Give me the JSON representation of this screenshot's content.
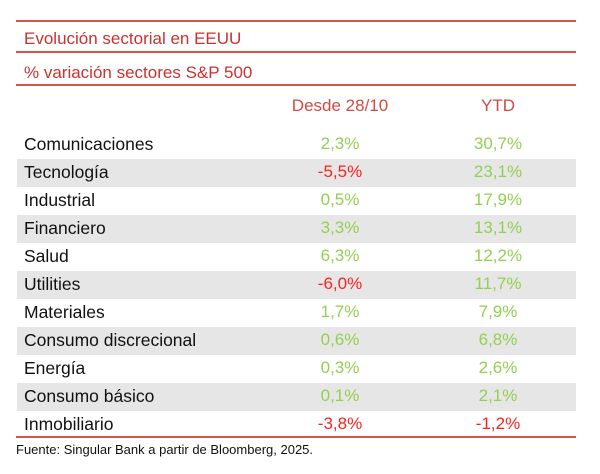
{
  "header": {
    "title": "Evolución sectorial en EEUU",
    "subtitle": "% variación sectores S&P 500"
  },
  "table": {
    "columns": [
      "Desde 28/10",
      "YTD"
    ],
    "rows": [
      {
        "sector": "Comunicaciones",
        "desde": "2,3%",
        "ytd": "30,7%",
        "desde_sign": "pos",
        "ytd_sign": "pos"
      },
      {
        "sector": "Tecnología",
        "desde": "-5,5%",
        "ytd": "23,1%",
        "desde_sign": "neg",
        "ytd_sign": "pos"
      },
      {
        "sector": "Industrial",
        "desde": "0,5%",
        "ytd": "17,9%",
        "desde_sign": "pos",
        "ytd_sign": "pos"
      },
      {
        "sector": "Financiero",
        "desde": "3,3%",
        "ytd": "13,1%",
        "desde_sign": "pos",
        "ytd_sign": "pos"
      },
      {
        "sector": "Salud",
        "desde": "6,3%",
        "ytd": "12,2%",
        "desde_sign": "pos",
        "ytd_sign": "pos"
      },
      {
        "sector": "Utilities",
        "desde": "-6,0%",
        "ytd": "11,7%",
        "desde_sign": "neg",
        "ytd_sign": "pos"
      },
      {
        "sector": "Materiales",
        "desde": "1,7%",
        "ytd": "7,9%",
        "desde_sign": "pos",
        "ytd_sign": "pos"
      },
      {
        "sector": "Consumo discrecional",
        "desde": "0,6%",
        "ytd": "6,8%",
        "desde_sign": "pos",
        "ytd_sign": "pos"
      },
      {
        "sector": "Energía",
        "desde": "0,3%",
        "ytd": "2,6%",
        "desde_sign": "pos",
        "ytd_sign": "pos"
      },
      {
        "sector": "Consumo básico",
        "desde": "0,1%",
        "ytd": "2,1%",
        "desde_sign": "pos",
        "ytd_sign": "pos"
      },
      {
        "sector": "Inmobiliario",
        "desde": "-3,8%",
        "ytd": "-1,2%",
        "desde_sign": "neg",
        "ytd_sign": "neg"
      }
    ]
  },
  "footer": {
    "source": "Fuente: Singular Bank a partir de Bloomberg, 2025."
  },
  "colors": {
    "accent": "#d9534a",
    "positive": "#92d050",
    "negative": "#ff1f1f",
    "row_shade": "#e6e6e6"
  }
}
